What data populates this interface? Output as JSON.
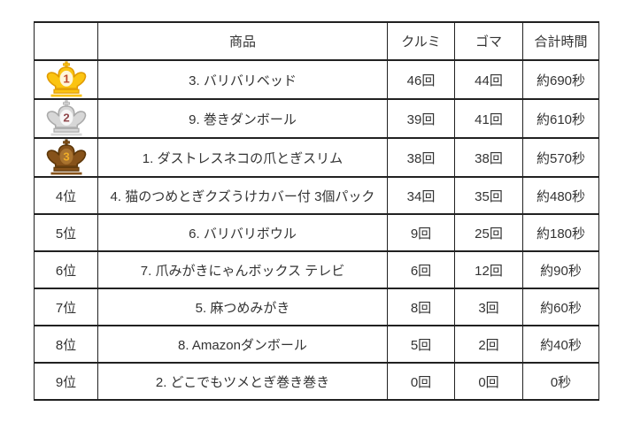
{
  "table": {
    "headers": [
      "",
      "商品",
      "クルミ",
      "ゴマ",
      "合計時間"
    ],
    "rows": [
      {
        "rank_label": "1",
        "rank_icon": "crown-gold-icon",
        "product": "3. バリバリベッド",
        "kurumi": "46回",
        "goma": "44回",
        "total_time": "約690秒"
      },
      {
        "rank_label": "2",
        "rank_icon": "crown-silver-icon",
        "product": "9. 巻きダンボール",
        "kurumi": "39回",
        "goma": "41回",
        "total_time": "約610秒"
      },
      {
        "rank_label": "3",
        "rank_icon": "crown-bronze-icon",
        "product": "1. ダストレスネコの爪とぎスリム",
        "kurumi": "38回",
        "goma": "38回",
        "total_time": "約570秒"
      },
      {
        "rank_label": "4位",
        "rank_icon": null,
        "product": "4. 猫のつめとぎクズうけカバー付 3個パック",
        "kurumi": "34回",
        "goma": "35回",
        "total_time": "約480秒"
      },
      {
        "rank_label": "5位",
        "rank_icon": null,
        "product": "6. バリバリボウル",
        "kurumi": "9回",
        "goma": "25回",
        "total_time": "約180秒"
      },
      {
        "rank_label": "6位",
        "rank_icon": null,
        "product": "7. 爪みがきにゃんボックス テレビ",
        "kurumi": "6回",
        "goma": "12回",
        "total_time": "約90秒"
      },
      {
        "rank_label": "7位",
        "rank_icon": null,
        "product": "5. 麻つめみがき",
        "kurumi": "8回",
        "goma": "3回",
        "total_time": "約60秒"
      },
      {
        "rank_label": "8位",
        "rank_icon": null,
        "product": "8. Amazonダンボール",
        "kurumi": "5回",
        "goma": "2回",
        "total_time": "約40秒"
      },
      {
        "rank_label": "9位",
        "rank_icon": null,
        "product": "2. どこでもツメとぎ巻き巻き",
        "kurumi": "0回",
        "goma": "0回",
        "total_time": "0秒"
      }
    ]
  },
  "chart_data": {
    "type": "table",
    "columns": [
      "",
      "商品",
      "クルミ",
      "ゴマ",
      "合計時間"
    ],
    "rows": [
      [
        "1",
        "3. バリバリベッド",
        "46回",
        "44回",
        "約690秒"
      ],
      [
        "2",
        "9. 巻きダンボール",
        "39回",
        "41回",
        "約610秒"
      ],
      [
        "3",
        "1. ダストレスネコの爪とぎスリム",
        "38回",
        "38回",
        "約570秒"
      ],
      [
        "4位",
        "4. 猫のつめとぎクズうけカバー付 3個パック",
        "34回",
        "35回",
        "約480秒"
      ],
      [
        "5位",
        "6. バリバリボウル",
        "9回",
        "25回",
        "約180秒"
      ],
      [
        "6位",
        "7. 爪みがきにゃんボックス テレビ",
        "6回",
        "12回",
        "約90秒"
      ],
      [
        "7位",
        "5. 麻つめみがき",
        "8回",
        "3回",
        "約60秒"
      ],
      [
        "8位",
        "8. Amazonダンボール",
        "5回",
        "2回",
        "約40秒"
      ],
      [
        "9位",
        "2. どこでもツメとぎ巻き巻き",
        "0回",
        "0回",
        "0秒"
      ]
    ],
    "series": [
      {
        "name": "クルミ",
        "values": [
          46,
          39,
          38,
          34,
          9,
          6,
          8,
          5,
          0
        ]
      },
      {
        "name": "ゴマ",
        "values": [
          44,
          41,
          38,
          35,
          25,
          12,
          3,
          2,
          0
        ]
      },
      {
        "name": "合計時間",
        "values": [
          690,
          610,
          570,
          480,
          180,
          90,
          60,
          40,
          0
        ]
      }
    ]
  },
  "crown_colors": {
    "gold": {
      "body": "#FBC411",
      "stroke": "#E09B00",
      "highlight": "#FFF6D9",
      "number": "#C0492B"
    },
    "silver": {
      "body": "#D7D7D7",
      "stroke": "#A9A9A9",
      "highlight": "#F7F7F7",
      "number": "#91484C"
    },
    "bronze": {
      "body": "#86521A",
      "stroke": "#5C3608",
      "highlight": "#A9732F",
      "number": "#EFAD27"
    }
  },
  "colors": {
    "border": "#212121",
    "text": "#333333",
    "background": "#ffffff"
  }
}
